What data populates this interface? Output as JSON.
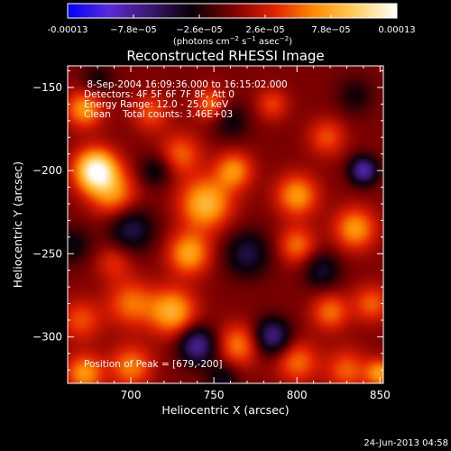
{
  "footer": {
    "date": "24-Jun-2013 04:58"
  },
  "colorbar": {
    "labels": [
      "-0.00013",
      "−7.8e−05",
      "−2.6e−05",
      "2.6e−05",
      "7.8e−05",
      "0.00013"
    ],
    "unit_main": "(photons cm",
    "unit_sup1": "−2",
    "unit_mid1": " s",
    "unit_sup2": "−1",
    "unit_mid2": " asec",
    "unit_sup3": "−2",
    "unit_end": ")",
    "colors": [
      "#0000ff",
      "#5a2ad8",
      "#3a1870",
      "#080008",
      "#7a0000",
      "#e02000",
      "#ff8c00",
      "#ffd060",
      "#ffffff"
    ]
  },
  "chart_data": {
    "type": "heatmap",
    "title": "Reconstructed RHESSI Image",
    "xlabel": "Heliocentric X (arcsec)",
    "ylabel": "Heliocentric Y (arcsec)",
    "xlim": [
      662,
      852
    ],
    "ylim": [
      -328,
      -137
    ],
    "xticks": [
      700,
      750,
      800,
      850
    ],
    "yticks": [
      -150,
      -200,
      -250,
      -300
    ],
    "zlim": [
      -0.00013,
      0.00013
    ],
    "annotations": [
      " 8-Sep-2004 16:09:36.000 to 16:15:02.000",
      "Detectors: 4F 5F 6F 7F 8F, Att 0",
      "Energy Range: 12.0 - 25.0 keV",
      "Clean    Total counts: 3.46E+03"
    ],
    "peak_label": "Position of Peak = [679,-200]",
    "peak_position": [
      679,
      -200
    ],
    "sources": [
      {
        "x": 679,
        "y": -200,
        "amp": 1.3,
        "sigma": 9
      },
      {
        "x": 672,
        "y": -163,
        "amp": 0.7,
        "sigma": 8
      },
      {
        "x": 690,
        "y": -215,
        "amp": 0.6,
        "sigma": 10
      },
      {
        "x": 712,
        "y": -165,
        "amp": 0.45,
        "sigma": 8
      },
      {
        "x": 730,
        "y": -190,
        "amp": 0.5,
        "sigma": 9
      },
      {
        "x": 748,
        "y": -160,
        "amp": 0.55,
        "sigma": 7
      },
      {
        "x": 745,
        "y": -220,
        "amp": 0.85,
        "sigma": 11
      },
      {
        "x": 762,
        "y": -200,
        "amp": 0.65,
        "sigma": 8
      },
      {
        "x": 735,
        "y": -250,
        "amp": 0.75,
        "sigma": 9
      },
      {
        "x": 725,
        "y": -285,
        "amp": 0.8,
        "sigma": 10
      },
      {
        "x": 700,
        "y": -280,
        "amp": 0.55,
        "sigma": 10
      },
      {
        "x": 670,
        "y": -290,
        "amp": 0.45,
        "sigma": 9
      },
      {
        "x": 672,
        "y": -322,
        "amp": 0.7,
        "sigma": 8
      },
      {
        "x": 700,
        "y": -318,
        "amp": 0.6,
        "sigma": 9
      },
      {
        "x": 765,
        "y": -305,
        "amp": 0.6,
        "sigma": 9
      },
      {
        "x": 800,
        "y": -315,
        "amp": 0.55,
        "sigma": 9
      },
      {
        "x": 830,
        "y": -320,
        "amp": 0.5,
        "sigma": 9
      },
      {
        "x": 850,
        "y": -322,
        "amp": 0.7,
        "sigma": 6
      },
      {
        "x": 820,
        "y": -285,
        "amp": 0.55,
        "sigma": 8
      },
      {
        "x": 818,
        "y": -180,
        "amp": 0.45,
        "sigma": 8
      },
      {
        "x": 800,
        "y": -215,
        "amp": 0.7,
        "sigma": 9
      },
      {
        "x": 835,
        "y": -235,
        "amp": 0.7,
        "sigma": 9
      },
      {
        "x": 800,
        "y": -245,
        "amp": 0.55,
        "sigma": 8
      },
      {
        "x": 845,
        "y": -280,
        "amp": 0.5,
        "sigma": 8
      },
      {
        "x": 785,
        "y": -160,
        "amp": 0.4,
        "sigma": 7
      },
      {
        "x": 690,
        "y": -255,
        "amp": 0.35,
        "sigma": 8
      },
      {
        "x": 700,
        "y": -235,
        "amp": -0.55,
        "sigma": 10
      },
      {
        "x": 770,
        "y": -250,
        "amp": -0.5,
        "sigma": 10
      },
      {
        "x": 740,
        "y": -305,
        "amp": -0.8,
        "sigma": 8
      },
      {
        "x": 785,
        "y": -300,
        "amp": -0.75,
        "sigma": 8
      },
      {
        "x": 840,
        "y": -200,
        "amp": -0.85,
        "sigma": 6
      },
      {
        "x": 815,
        "y": -260,
        "amp": -0.45,
        "sigma": 8
      },
      {
        "x": 760,
        "y": -170,
        "amp": -0.35,
        "sigma": 8
      },
      {
        "x": 680,
        "y": -145,
        "amp": -0.3,
        "sigma": 7
      },
      {
        "x": 715,
        "y": -200,
        "amp": -0.4,
        "sigma": 7
      },
      {
        "x": 835,
        "y": -155,
        "amp": -0.3,
        "sigma": 8
      },
      {
        "x": 755,
        "y": -325,
        "amp": -0.4,
        "sigma": 7
      },
      {
        "x": 665,
        "y": -245,
        "amp": -0.35,
        "sigma": 8
      }
    ]
  }
}
